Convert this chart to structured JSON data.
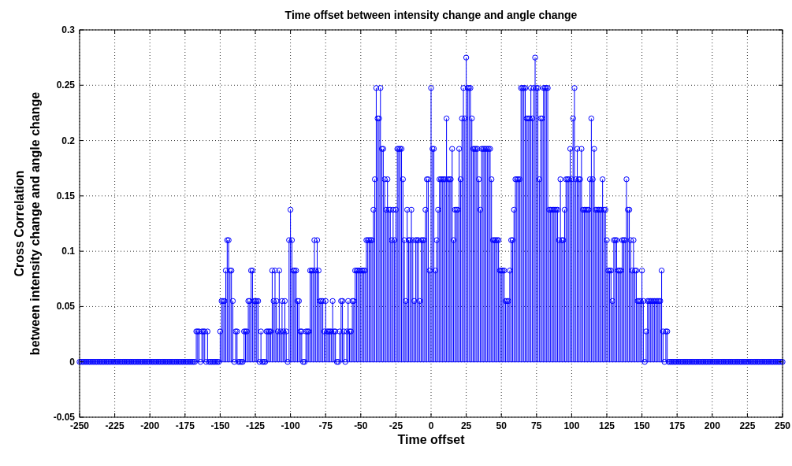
{
  "chart_data": {
    "type": "lollipop",
    "title": "Time offset between intensity change and angle change",
    "xlabel": "Time offset",
    "ylabel": "Cross Correlation\nbetween intensity change and angle change",
    "xlim": [
      -250,
      250
    ],
    "xticks": [
      -250,
      -225,
      -200,
      -175,
      -150,
      -125,
      -100,
      -75,
      -50,
      -25,
      0,
      25,
      50,
      75,
      100,
      125,
      150,
      175,
      200,
      225,
      250
    ],
    "ylim": [
      -0.05,
      0.3
    ],
    "yticks": [
      -0.05,
      0,
      0.05,
      0.1,
      0.15,
      0.2,
      0.25,
      0.3
    ],
    "grid": true,
    "marker": "circle",
    "series": [
      {
        "color": "#0000ff",
        "x": [
          -250,
          -249,
          -248,
          -247,
          -246,
          -245,
          -244,
          -243,
          -242,
          -241,
          -240,
          -239,
          -238,
          -237,
          -236,
          -235,
          -234,
          -233,
          -232,
          -231,
          -230,
          -229,
          -228,
          -227,
          -226,
          -225,
          -224,
          -223,
          -222,
          -221,
          -220,
          -219,
          -218,
          -217,
          -216,
          -215,
          -214,
          -213,
          -212,
          -211,
          -210,
          -209,
          -208,
          -207,
          -206,
          -205,
          -204,
          -203,
          -202,
          -201,
          -200,
          -199,
          -198,
          -197,
          -196,
          -195,
          -194,
          -193,
          -192,
          -191,
          -190,
          -189,
          -188,
          -187,
          -186,
          -185,
          -184,
          -183,
          -182,
          -181,
          -180,
          -179,
          -178,
          -177,
          -176,
          -175,
          -174,
          -173,
          -172,
          -171,
          -170,
          -169,
          -168,
          -167,
          -166,
          -165,
          -164,
          -163,
          -162,
          -161,
          -160,
          -159,
          -158,
          -157,
          -156,
          -155,
          -154,
          -153,
          -152,
          -151,
          -150,
          -149,
          -148,
          -147,
          -146,
          -145,
          -144,
          -143,
          -142,
          -141,
          -140,
          -139,
          -138,
          -137,
          -136,
          -135,
          -134,
          -133,
          -132,
          -131,
          -130,
          -129,
          -128,
          -127,
          -126,
          -125,
          -124,
          -123,
          -122,
          -121,
          -120,
          -119,
          -118,
          -117,
          -116,
          -115,
          -114,
          -113,
          -112,
          -111,
          -110,
          -109,
          -108,
          -107,
          -106,
          -105,
          -104,
          -103,
          -102,
          -101,
          -100,
          -99,
          -98,
          -97,
          -96,
          -95,
          -94,
          -93,
          -92,
          -91,
          -90,
          -89,
          -88,
          -87,
          -86,
          -85,
          -84,
          -83,
          -82,
          -81,
          -80,
          -79,
          -78,
          -77,
          -76,
          -75,
          -74,
          -73,
          -72,
          -71,
          -70,
          -69,
          -68,
          -67,
          -66,
          -65,
          -64,
          -63,
          -62,
          -61,
          -60,
          -59,
          -58,
          -57,
          -56,
          -55,
          -54,
          -53,
          -52,
          -51,
          -50,
          -49,
          -48,
          -47,
          -46,
          -45,
          -44,
          -43,
          -42,
          -41,
          -40,
          -39,
          -38,
          -37,
          -36,
          -35,
          -34,
          -33,
          -32,
          -31,
          -30,
          -29,
          -28,
          -27,
          -26,
          -25,
          -24,
          -23,
          -22,
          -21,
          -20,
          -19,
          -18,
          -17,
          -16,
          -15,
          -14,
          -13,
          -12,
          -11,
          -10,
          -9,
          -8,
          -7,
          -6,
          -5,
          -4,
          -3,
          -2,
          -1,
          0,
          1,
          2,
          3,
          4,
          5,
          6,
          7,
          8,
          9,
          10,
          11,
          12,
          13,
          14,
          15,
          16,
          17,
          18,
          19,
          20,
          21,
          22,
          23,
          24,
          25,
          26,
          27,
          28,
          29,
          30,
          31,
          32,
          33,
          34,
          35,
          36,
          37,
          38,
          39,
          40,
          41,
          42,
          43,
          44,
          45,
          46,
          47,
          48,
          49,
          50,
          51,
          52,
          53,
          54,
          55,
          56,
          57,
          58,
          59,
          60,
          61,
          62,
          63,
          64,
          65,
          66,
          67,
          68,
          69,
          70,
          71,
          72,
          73,
          74,
          75,
          76,
          77,
          78,
          79,
          80,
          81,
          82,
          83,
          84,
          85,
          86,
          87,
          88,
          89,
          90,
          91,
          92,
          93,
          94,
          95,
          96,
          97,
          98,
          99,
          100,
          101,
          102,
          103,
          104,
          105,
          106,
          107,
          108,
          109,
          110,
          111,
          112,
          113,
          114,
          115,
          116,
          117,
          118,
          119,
          120,
          121,
          122,
          123,
          124,
          125,
          126,
          127,
          128,
          129,
          130,
          131,
          132,
          133,
          134,
          135,
          136,
          137,
          138,
          139,
          140,
          141,
          142,
          143,
          144,
          145,
          146,
          147,
          148,
          149,
          150,
          151,
          152,
          153,
          154,
          155,
          156,
          157,
          158,
          159,
          160,
          161,
          162,
          163,
          164,
          165,
          166,
          167,
          168,
          169,
          170,
          171,
          172,
          173,
          174,
          175,
          176,
          177,
          178,
          179,
          180,
          181,
          182,
          183,
          184,
          185,
          186,
          187,
          188,
          189,
          190,
          191,
          192,
          193,
          194,
          195,
          196,
          197,
          198,
          199,
          200,
          201,
          202,
          203,
          204,
          205,
          206,
          207,
          208,
          209,
          210,
          211,
          212,
          213,
          214,
          215,
          216,
          217,
          218,
          219,
          220,
          221,
          222,
          223,
          224,
          225,
          226,
          227,
          228,
          229,
          230,
          231,
          232,
          233,
          234,
          235,
          236,
          237,
          238,
          239,
          240,
          241,
          242,
          243,
          244,
          245,
          246,
          247,
          248,
          249,
          250
        ],
        "values": [
          0,
          0,
          0,
          0,
          0,
          0,
          0,
          0,
          0,
          0,
          0,
          0,
          0,
          0,
          0,
          0,
          0,
          0,
          0,
          0,
          0,
          0,
          0,
          0,
          0,
          0,
          0,
          0,
          0,
          0,
          0,
          0,
          0,
          0,
          0,
          0,
          0,
          0,
          0,
          0,
          0,
          0,
          0,
          0,
          0,
          0,
          0,
          0,
          0,
          0,
          0,
          0,
          0,
          0,
          0,
          0,
          0,
          0,
          0,
          0,
          0,
          0,
          0,
          0,
          0,
          0,
          0,
          0,
          0,
          0,
          0,
          0,
          0,
          0,
          0,
          0,
          0,
          0,
          0,
          0,
          0,
          0,
          0,
          0.0275,
          0.0275,
          0.0275,
          0,
          0.0275,
          0.0275,
          0.0275,
          0,
          0.0275,
          0,
          0,
          0,
          0,
          0,
          0,
          0,
          0,
          0.0275,
          0.055,
          0.055,
          0.055,
          0.0825,
          0.11,
          0.11,
          0.0825,
          0.0825,
          0.055,
          0,
          0.0275,
          0.0275,
          0,
          0,
          0,
          0,
          0.0275,
          0.0275,
          0.0275,
          0.055,
          0.055,
          0.0825,
          0.0825,
          0.055,
          0.055,
          0.055,
          0.055,
          0,
          0.0275,
          0,
          0,
          0,
          0.0275,
          0.0275,
          0.0275,
          0.0275,
          0.0825,
          0.055,
          0.0825,
          0.055,
          0.0275,
          0.0825,
          0.0275,
          0.055,
          0.0275,
          0.055,
          0.0275,
          0,
          0.11,
          0.1375,
          0.11,
          0.0825,
          0.0825,
          0.0825,
          0.055,
          0.055,
          0.0275,
          0.0275,
          0,
          0,
          0.0275,
          0.0275,
          0.0275,
          0.0825,
          0.0825,
          0.0825,
          0.11,
          0.0825,
          0.11,
          0.0825,
          0.055,
          0.055,
          0.055,
          0.0275,
          0.055,
          0.0275,
          0.0275,
          0.0275,
          0.0275,
          0.055,
          0.0275,
          0.0275,
          0,
          0,
          0.0275,
          0.055,
          0.055,
          0.0275,
          0,
          0.0275,
          0.055,
          0.0275,
          0.0275,
          0.055,
          0.055,
          0.0825,
          0.0825,
          0.0825,
          0.0825,
          0.0825,
          0.0825,
          0.0825,
          0.0825,
          0.11,
          0.11,
          0.11,
          0.11,
          0.11,
          0.1375,
          0.165,
          0.2475,
          0.22,
          0.22,
          0.2475,
          0.1925,
          0.1925,
          0.165,
          0.1375,
          0.165,
          0.1375,
          0.1375,
          0.11,
          0.1375,
          0.11,
          0.1375,
          0.1925,
          0.1925,
          0.1925,
          0.1925,
          0.165,
          0.11,
          0.055,
          0.1375,
          0.11,
          0.11,
          0.1375,
          0.11,
          0.055,
          0.11,
          0.11,
          0.11,
          0.055,
          0.11,
          0.11,
          0.11,
          0.1375,
          0.165,
          0.165,
          0.0825,
          0.2475,
          0.1925,
          0.1925,
          0.0825,
          0.11,
          0.1375,
          0.165,
          0.165,
          0.165,
          0.165,
          0.165,
          0.22,
          0.165,
          0.165,
          0.165,
          0.1925,
          0.11,
          0.1375,
          0.1375,
          0.1375,
          0.1925,
          0.165,
          0.22,
          0.2475,
          0.22,
          0.275,
          0.2475,
          0.2475,
          0.2475,
          0.22,
          0.1925,
          0.1925,
          0.1925,
          0.1925,
          0.165,
          0.1375,
          0.1925,
          0.1925,
          0.1925,
          0.1925,
          0.1925,
          0.1925,
          0.1925,
          0.165,
          0.11,
          0.11,
          0.11,
          0.11,
          0.11,
          0.0825,
          0.0825,
          0.0825,
          0.0825,
          0.055,
          0.055,
          0.055,
          0.0825,
          0.11,
          0.11,
          0.1375,
          0.165,
          0.165,
          0.165,
          0.165,
          0.2475,
          0.2475,
          0.2475,
          0.2475,
          0.22,
          0.22,
          0.22,
          0.2475,
          0.22,
          0.2475,
          0.275,
          0.2475,
          0.2475,
          0.165,
          0.22,
          0.22,
          0.2475,
          0.2475,
          0.2475,
          0.2475,
          0.1375,
          0.1375,
          0.1375,
          0.1375,
          0.1375,
          0.1375,
          0.1375,
          0.11,
          0.165,
          0.11,
          0.11,
          0.1375,
          0.165,
          0.165,
          0.165,
          0.1925,
          0.165,
          0.22,
          0.2475,
          0.165,
          0.1925,
          0.165,
          0.165,
          0.1925,
          0.1375,
          0.1375,
          0.1375,
          0.1375,
          0.1375,
          0.165,
          0.22,
          0.165,
          0.1925,
          0.1375,
          0.1375,
          0.1375,
          0.1375,
          0.1375,
          0.165,
          0.1375,
          0.1375,
          0.11,
          0.0825,
          0.0825,
          0.0825,
          0.055,
          0.11,
          0.11,
          0.11,
          0.0825,
          0.0825,
          0.0825,
          0.11,
          0.11,
          0.11,
          0.165,
          0.1375,
          0.1375,
          0.11,
          0.0825,
          0.11,
          0.0825,
          0.0825,
          0.055,
          0.055,
          0.055,
          0.0825,
          0.055,
          0,
          0.0275,
          0.055,
          0.055,
          0.055,
          0.055,
          0.055,
          0.055,
          0.055,
          0.055,
          0.055,
          0.055,
          0.0825,
          0.0275,
          0,
          0.0275,
          0.0275,
          0,
          0,
          0,
          0,
          0,
          0,
          0,
          0,
          0,
          0,
          0,
          0,
          0,
          0,
          0,
          0,
          0,
          0,
          0,
          0,
          0,
          0,
          0,
          0,
          0,
          0,
          0,
          0,
          0,
          0,
          0,
          0,
          0,
          0,
          0,
          0,
          0,
          0,
          0,
          0,
          0,
          0,
          0,
          0,
          0,
          0,
          0,
          0,
          0,
          0,
          0,
          0,
          0,
          0,
          0,
          0,
          0,
          0,
          0,
          0,
          0,
          0,
          0,
          0,
          0,
          0,
          0,
          0,
          0,
          0,
          0,
          0,
          0,
          0,
          0,
          0,
          0,
          0,
          0,
          0,
          0,
          0
        ]
      }
    ]
  }
}
